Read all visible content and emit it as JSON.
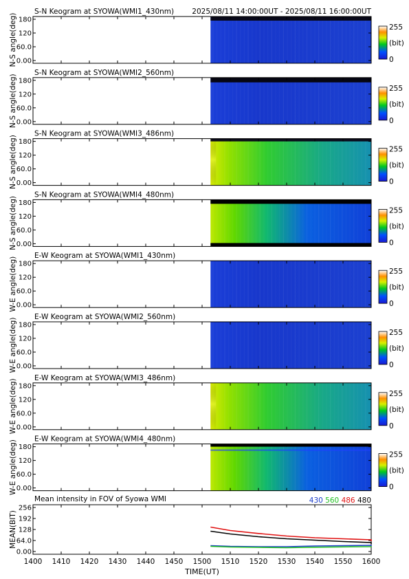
{
  "header": {
    "time_range": "2025/08/11 14:00:00UT - 2025/08/11 16:00:00UT"
  },
  "colorbar": {
    "max_label": "255",
    "unit_label": "(bit)",
    "min_label": "0"
  },
  "panels": [
    {
      "title": "S-N Keogram at SYOWA(WMI1_430nm)",
      "ylabel": "N-S angle(deg)",
      "yticks": [
        "180",
        "120",
        "60.0",
        "0.00"
      ]
    },
    {
      "title": "S-N Keogram at SYOWA(WMI2_560nm)",
      "ylabel": "N-S angle(deg)",
      "yticks": [
        "180",
        "120",
        "60.0",
        "0.00"
      ]
    },
    {
      "title": "S-N Keogram at SYOWA(WMI3_486nm)",
      "ylabel": "N-S angle(deg)",
      "yticks": [
        "180",
        "120",
        "60.0",
        "0.00"
      ]
    },
    {
      "title": "S-N Keogram at SYOWA(WMI4_480nm)",
      "ylabel": "N-S angle(deg)",
      "yticks": [
        "180",
        "120",
        "60.0",
        "0.00"
      ]
    },
    {
      "title": "E-W Keogram at SYOWA(WMI1_430nm)",
      "ylabel": "W-E angle(deg)",
      "yticks": [
        "180",
        "120",
        "60.0",
        "0.00"
      ]
    },
    {
      "title": "E-W Keogram at SYOWA(WMI2_560nm)",
      "ylabel": "W-E angle(deg)",
      "yticks": [
        "180",
        "120",
        "60.0",
        "0.00"
      ]
    },
    {
      "title": "E-W Keogram at SYOWA(WMI3_486nm)",
      "ylabel": "W-E angle(deg)",
      "yticks": [
        "180",
        "120",
        "60.0",
        "0.00"
      ]
    },
    {
      "title": "E-W Keogram at SYOWA(WMI4_480nm)",
      "ylabel": "W-E angle(deg)",
      "yticks": [
        "180",
        "120",
        "60.0",
        "0.00"
      ]
    }
  ],
  "mean_panel": {
    "title": "Mean intensity in FOV of Syowa WMI",
    "ylabel": "MEAN(BIT)",
    "yticks": [
      "256",
      "192",
      "128",
      "64.0",
      "0.00"
    ],
    "legend": [
      {
        "label": "430",
        "color": "#1a3cc8"
      },
      {
        "label": "560",
        "color": "#22c022"
      },
      {
        "label": "486",
        "color": "#e01010"
      },
      {
        "label": "480",
        "color": "#000000"
      }
    ]
  },
  "xaxis": {
    "label": "TIME(UT)",
    "ticks": [
      "1400",
      "1410",
      "1420",
      "1430",
      "1440",
      "1450",
      "1500",
      "1510",
      "1520",
      "1530",
      "1540",
      "1550",
      "1600"
    ]
  },
  "chart_data": {
    "type": "heatmap",
    "x_range_ut": [
      "1400",
      "1600"
    ],
    "data_start_ut": "1503",
    "y_range_deg": [
      0,
      180
    ],
    "color_range_bit": [
      0,
      255
    ],
    "keogram_mean_levels_bit": [
      {
        "panel": "S-N 430nm",
        "start": 40,
        "end": 35
      },
      {
        "panel": "S-N 560nm",
        "start": 38,
        "end": 35
      },
      {
        "panel": "S-N 486nm",
        "start": 140,
        "end": 90
      },
      {
        "panel": "S-N 480nm",
        "start": 135,
        "end": 45
      },
      {
        "panel": "E-W 430nm",
        "start": 40,
        "end": 35
      },
      {
        "panel": "E-W 560nm",
        "start": 38,
        "end": 35
      },
      {
        "panel": "E-W 486nm",
        "start": 140,
        "end": 90
      },
      {
        "panel": "E-W 480nm",
        "start": 135,
        "end": 45
      }
    ],
    "line_series": {
      "x_minutes": [
        1503,
        1510,
        1520,
        1530,
        1540,
        1550,
        1560,
        1570,
        1580,
        1590,
        1600
      ],
      "x_labels_ut": [
        "1503",
        "1510",
        "1520",
        "1530",
        "1540",
        "1550",
        "1600"
      ],
      "ylim": [
        0,
        256
      ],
      "series": [
        {
          "name": "486",
          "color": "#e01010",
          "values": [
            142,
            122,
            105,
            90,
            80,
            74,
            68,
            64,
            60,
            61,
            66
          ]
        },
        {
          "name": "480",
          "color": "#000000",
          "values": [
            118,
            102,
            86,
            74,
            66,
            58,
            52,
            48,
            46,
            44,
            45
          ]
        },
        {
          "name": "430",
          "color": "#1a3cc8",
          "values": [
            34,
            30,
            28,
            28,
            32,
            34,
            36,
            34,
            33,
            33,
            32
          ]
        },
        {
          "name": "560",
          "color": "#22c022",
          "values": [
            30,
            26,
            24,
            22,
            25,
            27,
            28,
            27,
            26,
            25,
            25
          ]
        }
      ]
    }
  }
}
